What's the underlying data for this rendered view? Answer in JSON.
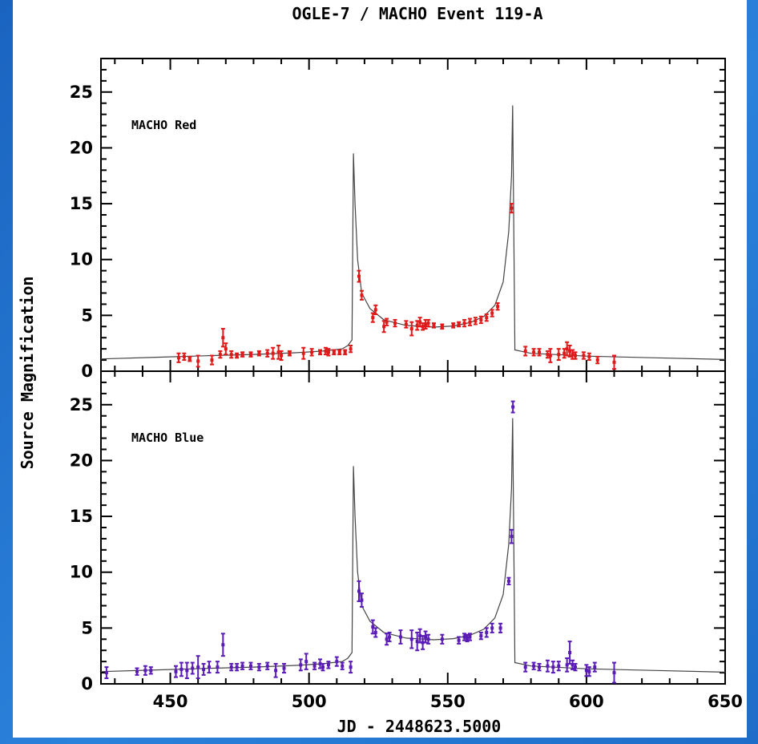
{
  "chart_data": {
    "type": "scatter",
    "title": "OGLE-7 / MACHO Event 119-A",
    "xlabel": "JD  -  2448623.5000",
    "ylabel": "Source Magnification",
    "xlim": [
      425,
      650
    ],
    "ylim": [
      0,
      28
    ],
    "x_ticks": [
      450,
      500,
      550,
      600,
      650
    ],
    "y_ticks": [
      0,
      5,
      10,
      15,
      20,
      25
    ],
    "grid": false,
    "legend": "none",
    "panels": [
      {
        "label": "MACHO Red",
        "color": "#e01818",
        "model": [
          [
            425,
            1.1
          ],
          [
            445,
            1.25
          ],
          [
            465,
            1.4
          ],
          [
            480,
            1.5
          ],
          [
            495,
            1.65
          ],
          [
            505,
            1.8
          ],
          [
            512,
            2.0
          ],
          [
            514,
            2.3
          ],
          [
            515.5,
            2.8
          ],
          [
            516,
            19.5
          ],
          [
            516.6,
            15.0
          ],
          [
            517.5,
            10.0
          ],
          [
            519,
            7.0
          ],
          [
            522,
            5.6
          ],
          [
            527,
            4.6
          ],
          [
            535,
            4.1
          ],
          [
            545,
            3.95
          ],
          [
            552,
            4.05
          ],
          [
            558,
            4.35
          ],
          [
            563,
            4.9
          ],
          [
            567,
            5.9
          ],
          [
            570,
            8.0
          ],
          [
            572,
            12.5
          ],
          [
            573,
            17.5
          ],
          [
            573.4,
            23.8
          ],
          [
            574.2,
            1.9
          ],
          [
            580,
            1.6
          ],
          [
            600,
            1.35
          ],
          [
            625,
            1.2
          ],
          [
            650,
            1.05
          ]
        ],
        "points": [
          [
            453,
            1.2,
            0.4
          ],
          [
            455,
            1.3,
            0.3
          ],
          [
            457,
            1.1,
            0.2
          ],
          [
            460,
            0.9,
            0.5
          ],
          [
            465,
            1.0,
            0.4
          ],
          [
            468,
            1.5,
            0.3
          ],
          [
            469,
            3.0,
            0.8
          ],
          [
            470,
            2.0,
            0.5
          ],
          [
            472,
            1.5,
            0.3
          ],
          [
            474,
            1.4,
            0.2
          ],
          [
            476,
            1.5,
            0.2
          ],
          [
            479,
            1.5,
            0.2
          ],
          [
            482,
            1.6,
            0.2
          ],
          [
            485,
            1.6,
            0.3
          ],
          [
            487,
            1.6,
            0.5
          ],
          [
            489,
            1.7,
            0.6
          ],
          [
            490,
            1.4,
            0.4
          ],
          [
            493,
            1.6,
            0.2
          ],
          [
            498,
            1.6,
            0.5
          ],
          [
            501,
            1.7,
            0.3
          ],
          [
            504,
            1.7,
            0.2
          ],
          [
            506,
            1.8,
            0.3
          ],
          [
            507,
            1.7,
            0.3
          ],
          [
            509,
            1.7,
            0.2
          ],
          [
            511,
            1.7,
            0.2
          ],
          [
            513,
            1.7,
            0.2
          ],
          [
            515,
            2.0,
            0.3
          ],
          [
            518,
            8.5,
            0.5
          ],
          [
            519,
            6.8,
            0.4
          ],
          [
            523,
            4.8,
            0.4
          ],
          [
            524,
            5.5,
            0.4
          ],
          [
            527,
            4.0,
            0.5
          ],
          [
            528,
            4.4,
            0.3
          ],
          [
            531,
            4.3,
            0.3
          ],
          [
            535,
            4.2,
            0.3
          ],
          [
            537,
            3.8,
            0.6
          ],
          [
            539,
            4.1,
            0.4
          ],
          [
            540,
            4.4,
            0.4
          ],
          [
            541,
            4.0,
            0.3
          ],
          [
            542,
            4.2,
            0.4
          ],
          [
            543,
            4.3,
            0.3
          ],
          [
            545,
            4.1,
            0.2
          ],
          [
            548,
            4.0,
            0.2
          ],
          [
            552,
            4.1,
            0.2
          ],
          [
            554,
            4.2,
            0.2
          ],
          [
            556,
            4.3,
            0.3
          ],
          [
            558,
            4.4,
            0.3
          ],
          [
            560,
            4.5,
            0.3
          ],
          [
            562,
            4.6,
            0.3
          ],
          [
            564,
            4.8,
            0.3
          ],
          [
            566,
            5.2,
            0.3
          ],
          [
            568,
            5.8,
            0.3
          ],
          [
            573,
            14.6,
            0.4
          ],
          [
            578,
            1.8,
            0.4
          ],
          [
            581,
            1.7,
            0.3
          ],
          [
            583,
            1.7,
            0.3
          ],
          [
            586,
            1.5,
            0.3
          ],
          [
            587,
            1.4,
            0.6
          ],
          [
            590,
            1.5,
            0.5
          ],
          [
            592,
            1.6,
            0.4
          ],
          [
            593,
            2.0,
            0.6
          ],
          [
            594,
            1.8,
            0.5
          ],
          [
            595,
            1.5,
            0.4
          ],
          [
            596,
            1.4,
            0.3
          ],
          [
            599,
            1.4,
            0.3
          ],
          [
            601,
            1.3,
            0.3
          ],
          [
            604,
            1.0,
            0.3
          ],
          [
            610,
            0.8,
            0.6
          ]
        ]
      },
      {
        "label": "MACHO Blue",
        "color": "#5a1ab8",
        "model": [
          [
            425,
            1.1
          ],
          [
            445,
            1.25
          ],
          [
            465,
            1.4
          ],
          [
            480,
            1.5
          ],
          [
            495,
            1.65
          ],
          [
            505,
            1.8
          ],
          [
            512,
            2.0
          ],
          [
            514,
            2.3
          ],
          [
            515.5,
            2.8
          ],
          [
            516,
            19.5
          ],
          [
            516.6,
            15.0
          ],
          [
            517.5,
            10.0
          ],
          [
            519,
            7.0
          ],
          [
            522,
            5.6
          ],
          [
            527,
            4.6
          ],
          [
            535,
            4.1
          ],
          [
            545,
            3.95
          ],
          [
            552,
            4.05
          ],
          [
            558,
            4.35
          ],
          [
            563,
            4.9
          ],
          [
            567,
            5.9
          ],
          [
            570,
            8.0
          ],
          [
            572,
            12.5
          ],
          [
            573,
            17.5
          ],
          [
            573.4,
            23.8
          ],
          [
            574.2,
            1.9
          ],
          [
            580,
            1.6
          ],
          [
            600,
            1.35
          ],
          [
            625,
            1.2
          ],
          [
            650,
            1.05
          ]
        ],
        "points": [
          [
            427,
            1.0,
            0.5
          ],
          [
            438,
            1.1,
            0.3
          ],
          [
            441,
            1.2,
            0.4
          ],
          [
            443,
            1.2,
            0.3
          ],
          [
            452,
            1.1,
            0.5
          ],
          [
            454,
            1.3,
            0.6
          ],
          [
            456,
            1.2,
            0.7
          ],
          [
            458,
            1.4,
            0.5
          ],
          [
            460,
            1.5,
            1.0
          ],
          [
            462,
            1.3,
            0.5
          ],
          [
            464,
            1.5,
            0.5
          ],
          [
            467,
            1.5,
            0.5
          ],
          [
            469,
            3.5,
            1.0
          ],
          [
            472,
            1.5,
            0.3
          ],
          [
            474,
            1.5,
            0.3
          ],
          [
            476,
            1.6,
            0.3
          ],
          [
            479,
            1.6,
            0.3
          ],
          [
            482,
            1.5,
            0.3
          ],
          [
            485,
            1.6,
            0.3
          ],
          [
            488,
            1.2,
            0.6
          ],
          [
            491,
            1.4,
            0.4
          ],
          [
            497,
            1.7,
            0.5
          ],
          [
            499,
            2.0,
            0.7
          ],
          [
            502,
            1.6,
            0.3
          ],
          [
            504,
            1.8,
            0.4
          ],
          [
            505,
            1.5,
            0.3
          ],
          [
            507,
            1.7,
            0.3
          ],
          [
            510,
            2.0,
            0.4
          ],
          [
            512,
            1.6,
            0.3
          ],
          [
            515,
            1.5,
            0.5
          ],
          [
            518,
            8.3,
            0.9
          ],
          [
            519,
            7.5,
            0.6
          ],
          [
            523,
            5.1,
            0.6
          ],
          [
            524,
            4.6,
            0.4
          ],
          [
            528,
            4.0,
            0.5
          ],
          [
            529,
            4.2,
            0.4
          ],
          [
            533,
            4.2,
            0.6
          ],
          [
            537,
            4.0,
            0.8
          ],
          [
            539,
            3.8,
            0.8
          ],
          [
            540,
            4.3,
            0.6
          ],
          [
            541,
            3.7,
            0.6
          ],
          [
            542,
            4.2,
            0.5
          ],
          [
            543,
            4.0,
            0.4
          ],
          [
            548,
            4.0,
            0.4
          ],
          [
            554,
            3.9,
            0.3
          ],
          [
            556,
            4.2,
            0.3
          ],
          [
            557,
            4.1,
            0.3
          ],
          [
            558,
            4.2,
            0.3
          ],
          [
            562,
            4.3,
            0.3
          ],
          [
            564,
            4.6,
            0.4
          ],
          [
            566,
            5.0,
            0.4
          ],
          [
            569,
            5.0,
            0.4
          ],
          [
            572,
            9.2,
            0.3
          ],
          [
            573,
            13.2,
            0.6
          ],
          [
            573.5,
            24.8,
            0.5
          ],
          [
            578,
            1.5,
            0.4
          ],
          [
            581,
            1.6,
            0.3
          ],
          [
            583,
            1.5,
            0.3
          ],
          [
            586,
            1.6,
            0.5
          ],
          [
            588,
            1.5,
            0.5
          ],
          [
            590,
            1.6,
            0.4
          ],
          [
            593,
            1.7,
            0.6
          ],
          [
            594,
            2.8,
            1.0
          ],
          [
            595,
            1.7,
            0.4
          ],
          [
            596,
            1.5,
            0.3
          ],
          [
            600,
            1.2,
            0.5
          ],
          [
            601,
            1.1,
            0.4
          ],
          [
            603,
            1.5,
            0.4
          ],
          [
            610,
            1.0,
            0.9
          ]
        ]
      }
    ]
  }
}
